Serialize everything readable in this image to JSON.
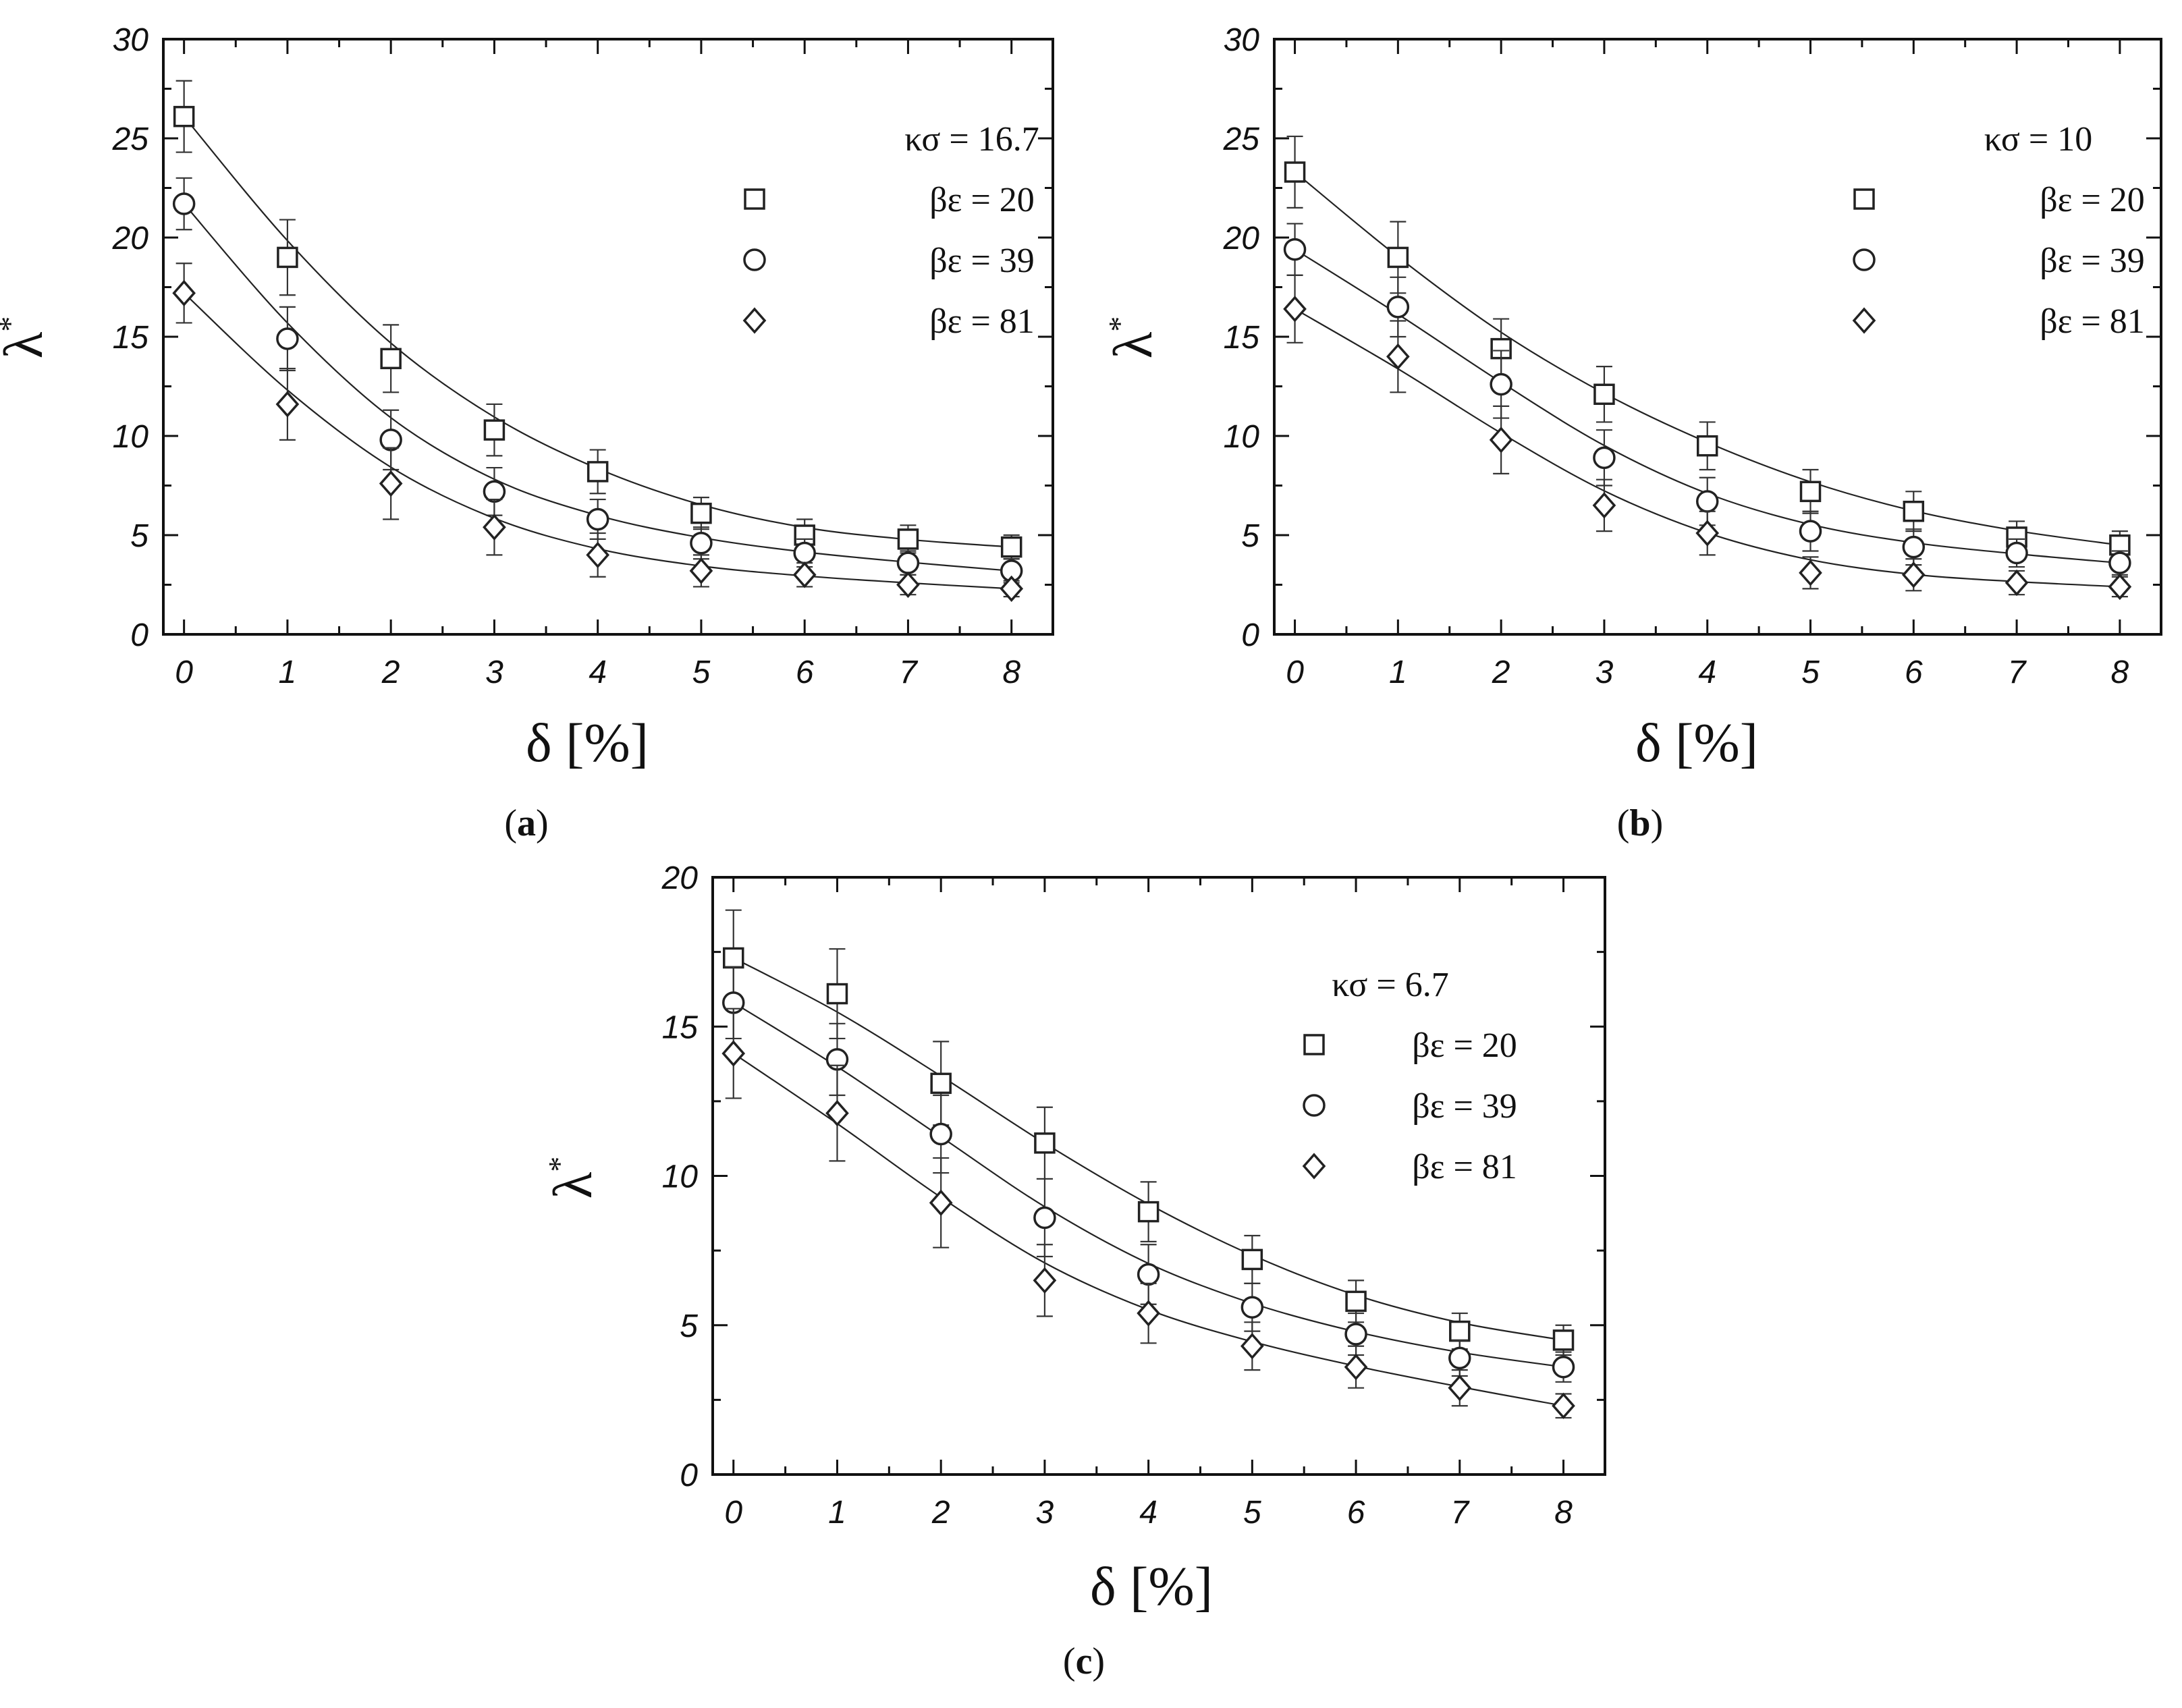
{
  "chart_data": [
    {
      "type": "scatter",
      "panel": "a",
      "caption_label": "a",
      "title": "κσ = 16.7",
      "xlabel": "δ [%]",
      "ylabel": "λ",
      "ylabel_sup": "*",
      "xlim": [
        -0.2,
        8.4
      ],
      "ylim": [
        0,
        30
      ],
      "xticks": [
        0,
        1,
        2,
        3,
        4,
        5,
        6,
        7,
        8
      ],
      "yticks": [
        0,
        5,
        10,
        15,
        20,
        25,
        30
      ],
      "x": [
        0,
        1,
        2,
        3,
        4,
        5,
        6,
        7,
        8
      ],
      "series": [
        {
          "name": "βε = 20",
          "marker": "square",
          "values": [
            26.1,
            19.0,
            13.9,
            10.3,
            8.2,
            6.1,
            5.0,
            4.8,
            4.4
          ],
          "errors": [
            1.8,
            1.9,
            1.7,
            1.3,
            1.1,
            0.8,
            0.8,
            0.7,
            0.6
          ]
        },
        {
          "name": "βε = 39",
          "marker": "circle",
          "values": [
            21.7,
            14.9,
            9.8,
            7.2,
            5.8,
            4.6,
            4.1,
            3.6,
            3.2
          ],
          "errors": [
            1.3,
            1.6,
            1.5,
            1.2,
            1.0,
            0.8,
            0.7,
            0.6,
            0.6
          ]
        },
        {
          "name": "βε = 81",
          "marker": "diamond",
          "values": [
            17.2,
            11.6,
            7.6,
            5.4,
            4.0,
            3.2,
            3.0,
            2.5,
            2.3
          ],
          "errors": [
            1.5,
            1.8,
            1.8,
            1.4,
            1.1,
            0.8,
            0.6,
            0.5,
            0.4
          ]
        }
      ]
    },
    {
      "type": "scatter",
      "panel": "b",
      "caption_label": "b",
      "title": "κσ = 10",
      "xlabel": "δ [%]",
      "ylabel": "λ",
      "ylabel_sup": "*",
      "xlim": [
        -0.2,
        8.4
      ],
      "ylim": [
        0,
        30
      ],
      "xticks": [
        0,
        1,
        2,
        3,
        4,
        5,
        6,
        7,
        8
      ],
      "yticks": [
        0,
        5,
        10,
        15,
        20,
        25,
        30
      ],
      "x": [
        0,
        1,
        2,
        3,
        4,
        5,
        6,
        7,
        8
      ],
      "series": [
        {
          "name": "βε = 20",
          "marker": "square",
          "values": [
            23.3,
            19.0,
            14.4,
            12.1,
            9.5,
            7.2,
            6.2,
            4.9,
            4.5
          ],
          "errors": [
            1.8,
            1.8,
            1.5,
            1.4,
            1.2,
            1.1,
            1.0,
            0.8,
            0.7
          ]
        },
        {
          "name": "βε = 39",
          "marker": "circle",
          "values": [
            19.4,
            16.5,
            12.6,
            8.9,
            6.7,
            5.2,
            4.4,
            4.1,
            3.6
          ],
          "errors": [
            1.3,
            1.5,
            1.7,
            1.4,
            1.2,
            1.0,
            0.9,
            0.7,
            0.6
          ]
        },
        {
          "name": "βε = 81",
          "marker": "diamond",
          "values": [
            16.4,
            14.0,
            9.8,
            6.5,
            5.1,
            3.1,
            3.0,
            2.6,
            2.4
          ],
          "errors": [
            1.7,
            1.8,
            1.7,
            1.3,
            1.1,
            0.8,
            0.8,
            0.6,
            0.5
          ]
        }
      ]
    },
    {
      "type": "scatter",
      "panel": "c",
      "caption_label": "c",
      "title": "κσ = 6.7",
      "xlabel": "δ [%]",
      "ylabel": "λ",
      "ylabel_sup": "*",
      "xlim": [
        -0.2,
        8.4
      ],
      "ylim": [
        0,
        20
      ],
      "xticks": [
        0,
        1,
        2,
        3,
        4,
        5,
        6,
        7,
        8
      ],
      "yticks": [
        0,
        5,
        10,
        15,
        20
      ],
      "x": [
        0,
        1,
        2,
        3,
        4,
        5,
        6,
        7,
        8
      ],
      "series": [
        {
          "name": "βε = 20",
          "marker": "square",
          "values": [
            17.3,
            16.1,
            13.1,
            11.1,
            8.8,
            7.2,
            5.8,
            4.8,
            4.5
          ],
          "errors": [
            1.6,
            1.5,
            1.4,
            1.2,
            1.0,
            0.8,
            0.7,
            0.6,
            0.5
          ]
        },
        {
          "name": "βε = 39",
          "marker": "circle",
          "values": [
            15.8,
            13.9,
            11.4,
            8.6,
            6.7,
            5.6,
            4.7,
            3.9,
            3.6
          ],
          "errors": [
            1.2,
            1.2,
            1.3,
            1.3,
            1.0,
            0.8,
            0.7,
            0.6,
            0.5
          ]
        },
        {
          "name": "βε = 81",
          "marker": "diamond",
          "values": [
            14.1,
            12.1,
            9.1,
            6.5,
            5.4,
            4.3,
            3.6,
            2.9,
            2.3
          ],
          "errors": [
            1.5,
            1.6,
            1.5,
            1.2,
            1.0,
            0.8,
            0.7,
            0.6,
            0.4
          ]
        }
      ]
    }
  ]
}
